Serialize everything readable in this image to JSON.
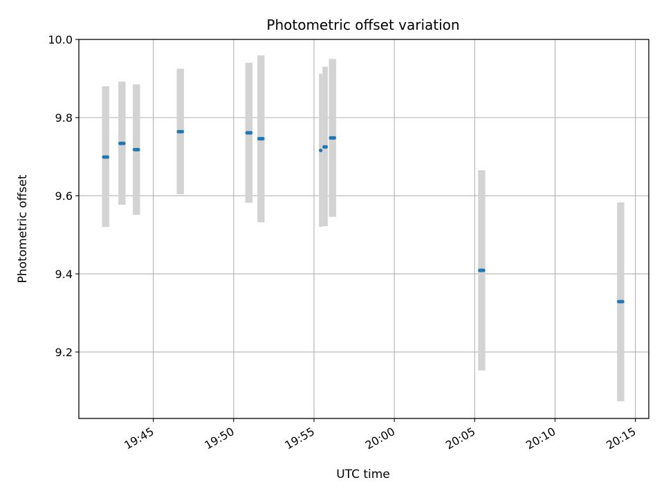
{
  "chart_data": {
    "type": "scatter",
    "title": "Photometric offset variation",
    "xlabel": "UTC time",
    "ylabel": "Photometric offset",
    "xlim": [
      "19:40:22",
      "20:15:50"
    ],
    "ylim": [
      9.03,
      10.0
    ],
    "x_ticks": [
      "19:45",
      "19:50",
      "19:55",
      "20:00",
      "20:05",
      "20:10",
      "20:15"
    ],
    "y_ticks": [
      9.2,
      9.4,
      9.6,
      9.8,
      10.0
    ],
    "y_tick_labels": [
      "9.2",
      "9.4",
      "9.6",
      "9.8",
      "10.0"
    ],
    "grid": true,
    "colors": {
      "points": "#1f77b4",
      "error_bars": "#d3d3d3",
      "grid": "#b0b0b0"
    },
    "points": [
      {
        "x": "19:41:55",
        "y": 9.699,
        "err_lo": 9.52,
        "err_hi": 9.88
      },
      {
        "x": "19:42:02",
        "y": 9.699,
        "err_lo": 9.52,
        "err_hi": 9.88
      },
      {
        "x": "19:42:09",
        "y": 9.699,
        "err_lo": 9.52,
        "err_hi": 9.88
      },
      {
        "x": "19:42:56",
        "y": 9.734,
        "err_lo": 9.577,
        "err_hi": 9.892
      },
      {
        "x": "19:43:03",
        "y": 9.734,
        "err_lo": 9.577,
        "err_hi": 9.892
      },
      {
        "x": "19:43:10",
        "y": 9.734,
        "err_lo": 9.577,
        "err_hi": 9.892
      },
      {
        "x": "19:43:50",
        "y": 9.718,
        "err_lo": 9.551,
        "err_hi": 9.885
      },
      {
        "x": "19:43:57",
        "y": 9.718,
        "err_lo": 9.551,
        "err_hi": 9.885
      },
      {
        "x": "19:44:04",
        "y": 9.718,
        "err_lo": 9.551,
        "err_hi": 9.885
      },
      {
        "x": "19:46:34",
        "y": 9.764,
        "err_lo": 9.604,
        "err_hi": 9.925
      },
      {
        "x": "19:46:41",
        "y": 9.764,
        "err_lo": 9.604,
        "err_hi": 9.925
      },
      {
        "x": "19:46:48",
        "y": 9.764,
        "err_lo": 9.604,
        "err_hi": 9.925
      },
      {
        "x": "19:50:50",
        "y": 9.761,
        "err_lo": 9.582,
        "err_hi": 9.94
      },
      {
        "x": "19:50:57",
        "y": 9.761,
        "err_lo": 9.582,
        "err_hi": 9.94
      },
      {
        "x": "19:51:04",
        "y": 9.761,
        "err_lo": 9.582,
        "err_hi": 9.94
      },
      {
        "x": "19:51:35",
        "y": 9.746,
        "err_lo": 9.532,
        "err_hi": 9.959
      },
      {
        "x": "19:51:42",
        "y": 9.746,
        "err_lo": 9.532,
        "err_hi": 9.959
      },
      {
        "x": "19:51:49",
        "y": 9.746,
        "err_lo": 9.532,
        "err_hi": 9.959
      },
      {
        "x": "19:55:25",
        "y": 9.716,
        "err_lo": 9.52,
        "err_hi": 9.912
      },
      {
        "x": "19:55:38",
        "y": 9.725,
        "err_lo": 9.522,
        "err_hi": 9.93
      },
      {
        "x": "19:55:45",
        "y": 9.725,
        "err_lo": 9.522,
        "err_hi": 9.93
      },
      {
        "x": "19:56:02",
        "y": 9.748,
        "err_lo": 9.546,
        "err_hi": 9.95
      },
      {
        "x": "19:56:09",
        "y": 9.748,
        "err_lo": 9.546,
        "err_hi": 9.95
      },
      {
        "x": "19:56:16",
        "y": 9.748,
        "err_lo": 9.546,
        "err_hi": 9.95
      },
      {
        "x": "20:05:19",
        "y": 9.409,
        "err_lo": 9.153,
        "err_hi": 9.665
      },
      {
        "x": "20:05:26",
        "y": 9.409,
        "err_lo": 9.153,
        "err_hi": 9.665
      },
      {
        "x": "20:05:33",
        "y": 9.409,
        "err_lo": 9.153,
        "err_hi": 9.665
      },
      {
        "x": "20:13:58",
        "y": 9.329,
        "err_lo": 9.074,
        "err_hi": 9.583
      },
      {
        "x": "20:14:05",
        "y": 9.329,
        "err_lo": 9.074,
        "err_hi": 9.583
      },
      {
        "x": "20:14:12",
        "y": 9.329,
        "err_lo": 9.074,
        "err_hi": 9.583
      }
    ]
  }
}
